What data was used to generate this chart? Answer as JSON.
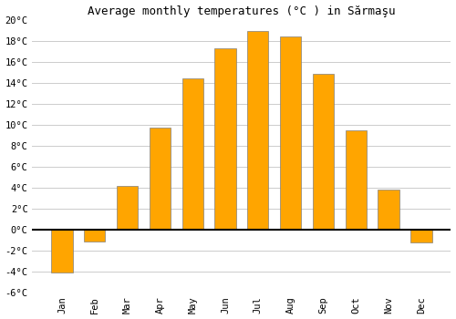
{
  "title": "Average monthly temperatures (°C ) in Sărmaşu",
  "months": [
    "Jan",
    "Feb",
    "Mar",
    "Apr",
    "May",
    "Jun",
    "Jul",
    "Aug",
    "Sep",
    "Oct",
    "Nov",
    "Dec"
  ],
  "values": [
    -4.1,
    -1.1,
    4.2,
    9.8,
    14.5,
    17.3,
    19.0,
    18.5,
    14.9,
    9.5,
    3.8,
    -1.2
  ],
  "bar_color": "#FFA500",
  "bar_edge_color": "#808080",
  "ylim": [
    -6,
    20
  ],
  "yticks": [
    -6,
    -4,
    -2,
    0,
    2,
    4,
    6,
    8,
    10,
    12,
    14,
    16,
    18,
    20
  ],
  "background_color": "#ffffff",
  "grid_color": "#cccccc",
  "title_fontsize": 9,
  "tick_fontsize": 7.5,
  "figsize": [
    5.0,
    3.5
  ],
  "dpi": 100
}
